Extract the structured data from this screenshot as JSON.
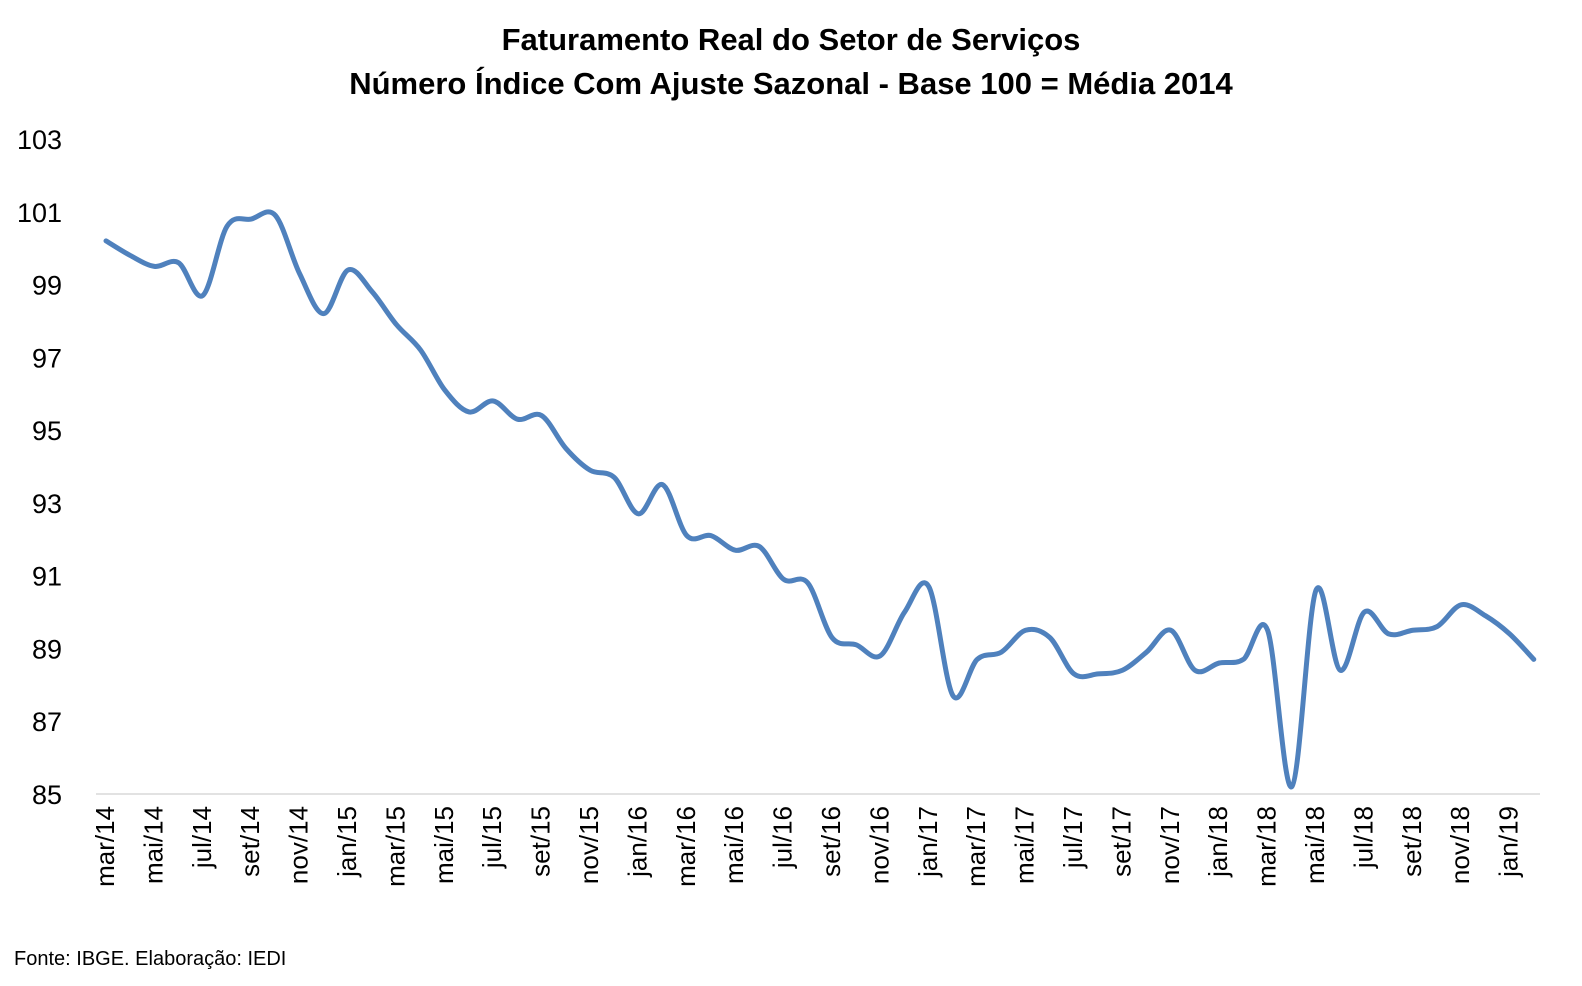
{
  "chart_data": {
    "type": "line",
    "title": "Faturamento Real do Setor de Serviços",
    "subtitle": "Número Índice Com Ajuste Sazonal - Base 100 = Média 2014",
    "xlabel": "",
    "ylabel": "",
    "ylim": [
      85,
      103
    ],
    "yticks": [
      "103",
      "101",
      "99",
      "97",
      "95",
      "93",
      "91",
      "89",
      "87",
      "85"
    ],
    "x_tick_labels": [
      "mar/14",
      "mai/14",
      "jul/14",
      "set/14",
      "nov/14",
      "jan/15",
      "mar/15",
      "mai/15",
      "jul/15",
      "set/15",
      "nov/15",
      "jan/16",
      "mar/16",
      "mai/16",
      "jul/16",
      "set/16",
      "nov/16",
      "jan/17",
      "mar/17",
      "mai/17",
      "jul/17",
      "set/17",
      "nov/17",
      "jan/18",
      "mar/18",
      "mai/18",
      "jul/18",
      "set/18",
      "nov/18",
      "jan/19"
    ],
    "x": [
      "mar/14",
      "abr/14",
      "mai/14",
      "jun/14",
      "jul/14",
      "ago/14",
      "set/14",
      "out/14",
      "nov/14",
      "dez/14",
      "jan/15",
      "fev/15",
      "mar/15",
      "abr/15",
      "mai/15",
      "jun/15",
      "jul/15",
      "ago/15",
      "set/15",
      "out/15",
      "nov/15",
      "dez/15",
      "jan/16",
      "fev/16",
      "mar/16",
      "abr/16",
      "mai/16",
      "jun/16",
      "jul/16",
      "ago/16",
      "set/16",
      "out/16",
      "nov/16",
      "dez/16",
      "jan/17",
      "fev/17",
      "mar/17",
      "abr/17",
      "mai/17",
      "jun/17",
      "jul/17",
      "ago/17",
      "set/17",
      "out/17",
      "nov/17",
      "dez/17",
      "jan/18",
      "fev/18",
      "mar/18",
      "abr/18",
      "mai/18",
      "jun/18",
      "jul/18",
      "ago/18",
      "set/18",
      "out/18",
      "nov/18",
      "dez/18",
      "jan/19",
      "fev/19"
    ],
    "series": [
      {
        "color": "#4f81bd",
        "values": [
          100.2,
          99.8,
          99.5,
          99.6,
          98.7,
          100.6,
          100.8,
          100.9,
          99.3,
          98.2,
          99.4,
          98.8,
          97.9,
          97.2,
          96.1,
          95.5,
          95.8,
          95.3,
          95.4,
          94.5,
          93.9,
          93.7,
          92.7,
          93.5,
          92.1,
          92.1,
          91.7,
          91.8,
          90.9,
          90.8,
          89.3,
          89.1,
          88.8,
          90.0,
          90.7,
          87.7,
          88.7,
          88.9,
          89.5,
          89.3,
          88.3,
          88.3,
          88.4,
          88.9,
          89.5,
          88.4,
          88.6,
          88.7,
          89.5,
          85.2,
          90.6,
          88.4,
          90.0,
          89.4,
          89.5,
          89.6,
          90.2,
          89.9,
          89.4,
          88.7
        ]
      }
    ],
    "grid": false,
    "legend": "none"
  },
  "source": "Fonte: IBGE. Elaboração: IEDI"
}
